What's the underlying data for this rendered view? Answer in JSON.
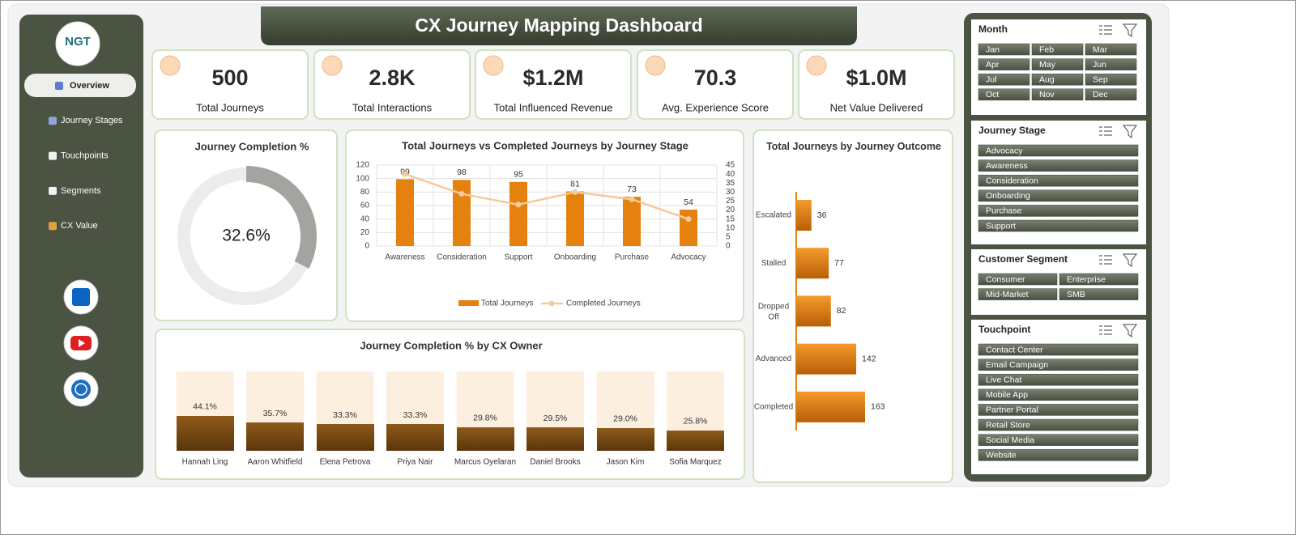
{
  "title": "CX Journey Mapping Dashboard",
  "sidebar": {
    "logo": "NGT",
    "nav": [
      "Overview",
      "Journey Stages",
      "Touchpoints",
      "Segments",
      "CX Value"
    ]
  },
  "kpis": [
    {
      "value": "500",
      "label": "Total Journeys"
    },
    {
      "value": "2.8K",
      "label": "Total Interactions"
    },
    {
      "value": "$1.2M",
      "label": "Total Influenced Revenue"
    },
    {
      "value": "70.3",
      "label": "Avg. Experience Score"
    },
    {
      "value": "$1.0M",
      "label": "Net Value Delivered"
    }
  ],
  "chart_data": [
    {
      "type": "doughnut",
      "title": "Journey Completion %",
      "values": [
        32.6,
        67.4
      ],
      "colors": [
        "#a3a39f",
        "#ececec"
      ],
      "label": "32.6%"
    },
    {
      "type": "combo",
      "title": "Total Journeys vs Completed Journeys by Journey Stage",
      "categories": [
        "Awareness",
        "Consideration",
        "Support",
        "Onboarding",
        "Purchase",
        "Advocacy"
      ],
      "series": [
        {
          "name": "Total Journeys",
          "type": "bar",
          "color": "#e5820f",
          "values": [
            99,
            98,
            95,
            81,
            73,
            54
          ]
        },
        {
          "name": "Completed Journeys",
          "type": "line",
          "color": "#f5c99a",
          "axis": "y2",
          "values": [
            40,
            29,
            23,
            30,
            26,
            15
          ]
        }
      ],
      "ylim": [
        0,
        120
      ],
      "yticks": [
        0,
        20,
        40,
        60,
        80,
        100,
        120
      ],
      "y2lim": [
        0,
        45
      ],
      "y2ticks": [
        0,
        5,
        10,
        15,
        20,
        25,
        30,
        35,
        40,
        45
      ],
      "grid": true,
      "legend": "bottom"
    },
    {
      "type": "hbar",
      "title": "Total Journeys by Journey Outcome",
      "categories": [
        "Escalated",
        "Stalled",
        "Dropped Off",
        "Advanced",
        "Completed"
      ],
      "values": [
        36,
        77,
        82,
        142,
        163
      ],
      "color": "#e5820f"
    },
    {
      "type": "percent_bar",
      "title": "Journey Completion % by CX Owner",
      "categories": [
        "Hannah Ling",
        "Aaron Whitfield",
        "Elena Petrova",
        "Priya Nair",
        "Marcus Oyelaran",
        "Daniel Brooks",
        "Jason Kim",
        "Sofia Marquez"
      ],
      "values": [
        44.1,
        35.7,
        33.3,
        33.3,
        29.8,
        29.5,
        29.0,
        25.8
      ],
      "value_labels": [
        "44.1%",
        "35.7%",
        "33.3%",
        "33.3%",
        "29.8%",
        "29.5%",
        "29.0%",
        "25.8%"
      ],
      "color": "#7b4c14",
      "background": "#fcefe0"
    }
  ],
  "slicers": [
    {
      "title": "Month",
      "items": [
        "Jan",
        "Feb",
        "Mar",
        "Apr",
        "May",
        "Jun",
        "Jul",
        "Aug",
        "Sep",
        "Oct",
        "Nov",
        "Dec"
      ]
    },
    {
      "title": "Journey Stage",
      "items": [
        "Advocacy",
        "Awareness",
        "Consideration",
        "Onboarding",
        "Purchase",
        "Support"
      ]
    },
    {
      "title": "Customer Segment",
      "items": [
        "Consumer",
        "Enterprise",
        "Mid-Market",
        "SMB"
      ]
    },
    {
      "title": "Touchpoint",
      "items": [
        "Contact Center",
        "Email Campaign",
        "Live Chat",
        "Mobile App",
        "Partner Portal",
        "Retail Store",
        "Social Media",
        "Website"
      ]
    }
  ]
}
